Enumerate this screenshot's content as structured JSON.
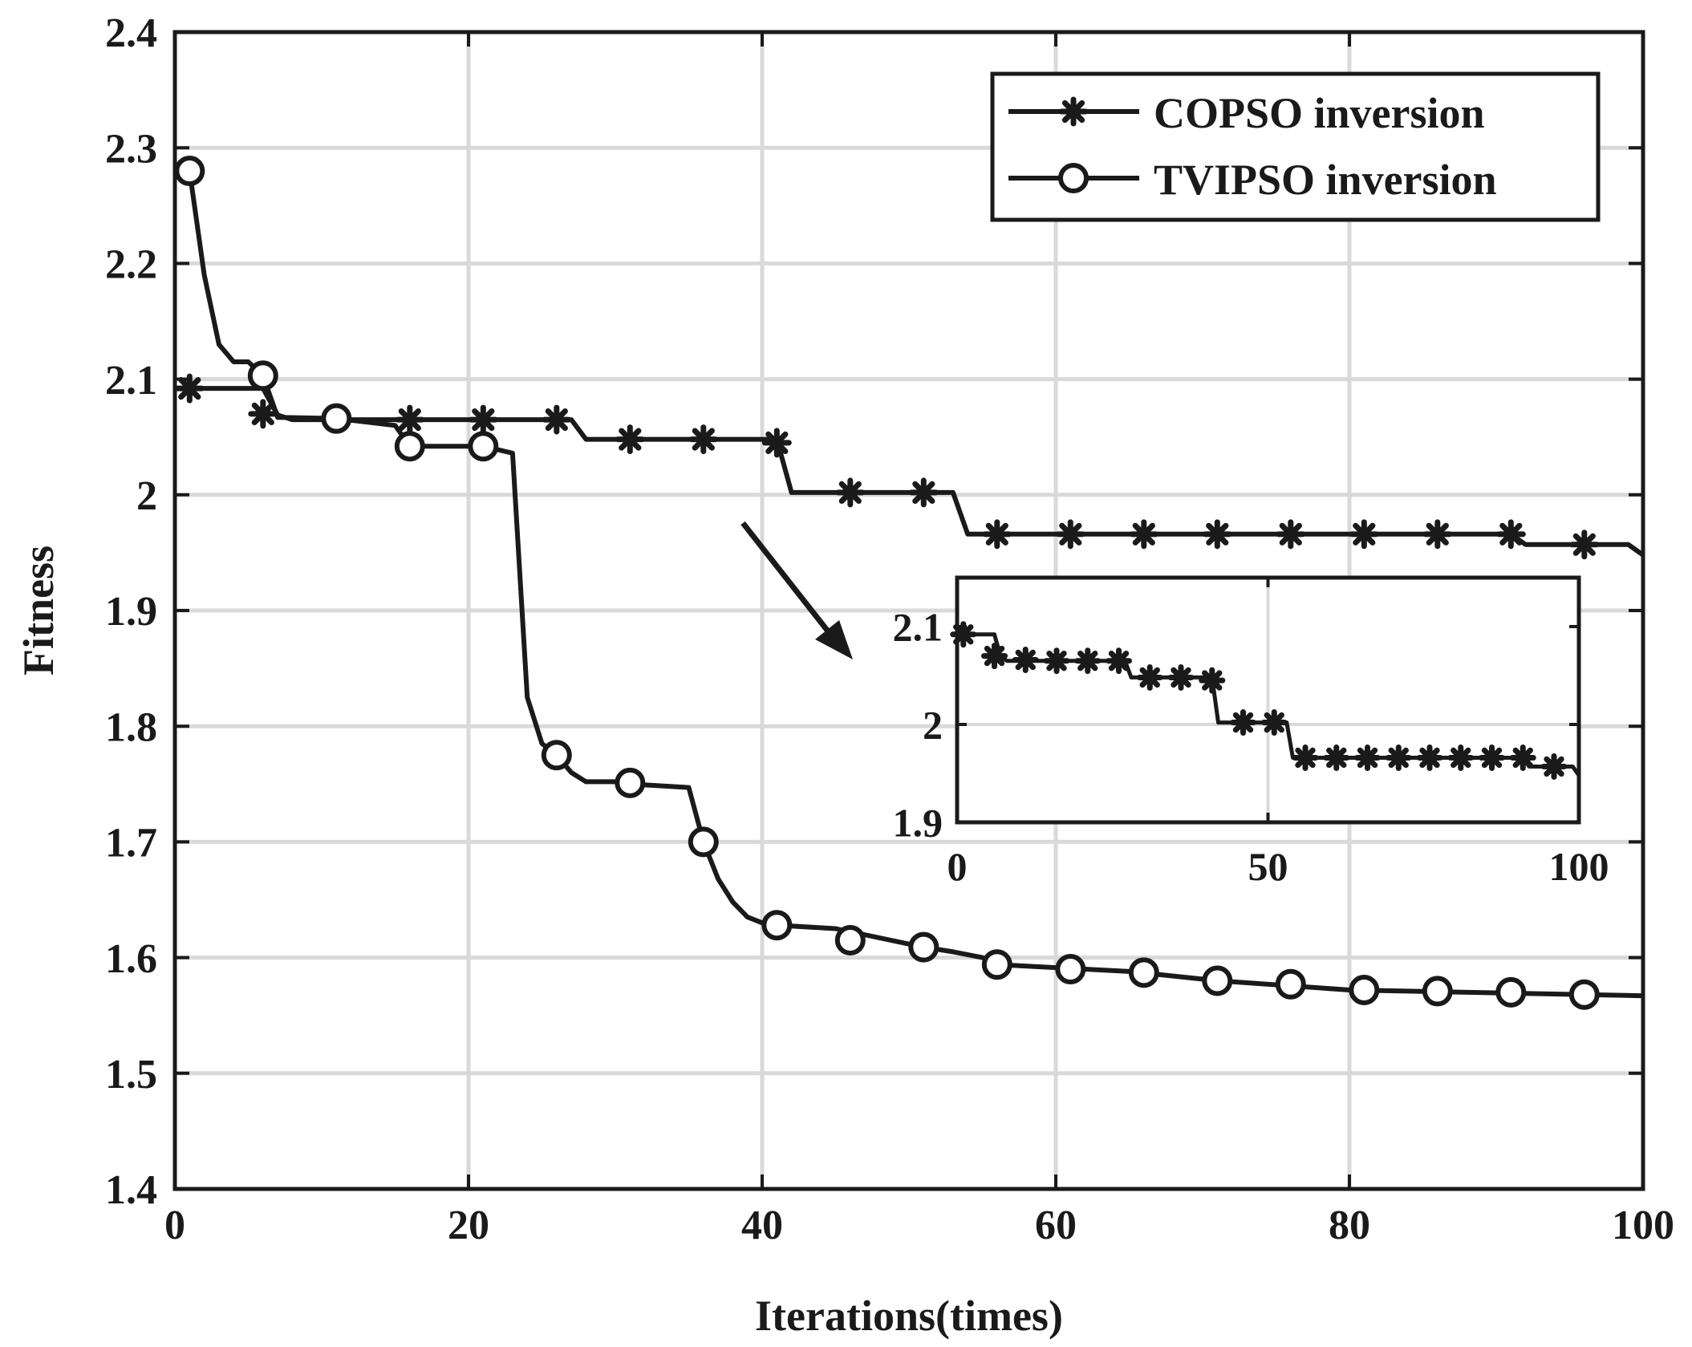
{
  "chart_data": {
    "type": "line",
    "title": "",
    "xlabel": "Iterations(times)",
    "ylabel": "Fitness",
    "xlim": [
      0,
      100
    ],
    "ylim": [
      1.4,
      2.4
    ],
    "xticks": [
      0,
      20,
      40,
      60,
      80,
      100
    ],
    "xtick_labels": [
      "0",
      "20",
      "40",
      "60",
      "80",
      "100"
    ],
    "yticks": [
      1.4,
      1.5,
      1.6,
      1.7,
      1.8,
      1.9,
      2.0,
      2.1,
      2.2,
      2.3,
      2.4
    ],
    "ytick_labels": [
      "1.4",
      "1.5",
      "1.6",
      "1.7",
      "1.8",
      "1.9",
      "2",
      "2.1",
      "2.2",
      "2.3",
      "2.4"
    ],
    "grid": true,
    "legend_position": "top-right",
    "series": [
      {
        "name": "COPSO inversion",
        "marker": "asterisk",
        "x": [
          1,
          6,
          7,
          8,
          15,
          27,
          28,
          41,
          42,
          53,
          54,
          91,
          92,
          99,
          100
        ],
        "y": [
          2.092,
          2.092,
          2.069,
          2.065,
          2.065,
          2.065,
          2.048,
          2.048,
          2.002,
          2.002,
          1.966,
          1.966,
          1.957,
          1.957,
          1.948
        ],
        "marker_x": [
          1,
          6,
          11,
          16,
          21,
          26,
          31,
          36,
          41,
          46,
          51,
          56,
          61,
          66,
          71,
          76,
          81,
          86,
          91,
          96
        ],
        "marker_y": [
          2.092,
          2.07,
          2.066,
          2.065,
          2.065,
          2.065,
          2.048,
          2.048,
          2.045,
          2.002,
          2.002,
          1.966,
          1.966,
          1.966,
          1.966,
          1.966,
          1.966,
          1.966,
          1.966,
          1.957
        ]
      },
      {
        "name": "TVIPSO inversion",
        "marker": "circle",
        "x": [
          1,
          2,
          3,
          4,
          5,
          6,
          7,
          11,
          15,
          16,
          21,
          23,
          24,
          25,
          26,
          27,
          28,
          30,
          31,
          35,
          36,
          37,
          38,
          39,
          40,
          41,
          45,
          51,
          53,
          55,
          56,
          65,
          71,
          80,
          100
        ],
        "y": [
          2.28,
          2.19,
          2.13,
          2.115,
          2.115,
          2.103,
          2.067,
          2.066,
          2.06,
          2.042,
          2.042,
          2.036,
          1.825,
          1.785,
          1.775,
          1.76,
          1.752,
          1.752,
          1.75,
          1.747,
          1.7,
          1.668,
          1.648,
          1.635,
          1.63,
          1.628,
          1.625,
          1.609,
          1.605,
          1.6,
          1.594,
          1.588,
          1.58,
          1.572,
          1.567
        ],
        "marker_x": [
          1,
          6,
          11,
          16,
          21,
          26,
          31,
          36,
          41,
          46,
          51,
          56,
          61,
          66,
          71,
          76,
          81,
          86,
          91,
          96
        ],
        "marker_y": [
          2.28,
          2.103,
          2.066,
          2.042,
          2.042,
          1.775,
          1.751,
          1.7,
          1.628,
          1.615,
          1.609,
          1.594,
          1.59,
          1.587,
          1.58,
          1.577,
          1.572,
          1.571,
          1.57,
          1.568
        ]
      }
    ],
    "inset": {
      "xlim": [
        0,
        100
      ],
      "ylim": [
        1.9,
        2.15
      ],
      "xticks": [
        0,
        50,
        100
      ],
      "xtick_labels": [
        "0",
        "50",
        "100"
      ],
      "yticks": [
        1.9,
        2.0,
        2.1
      ],
      "ytick_labels": [
        "1.9",
        "2",
        "2.1"
      ],
      "series_ref": "COPSO inversion"
    }
  }
}
